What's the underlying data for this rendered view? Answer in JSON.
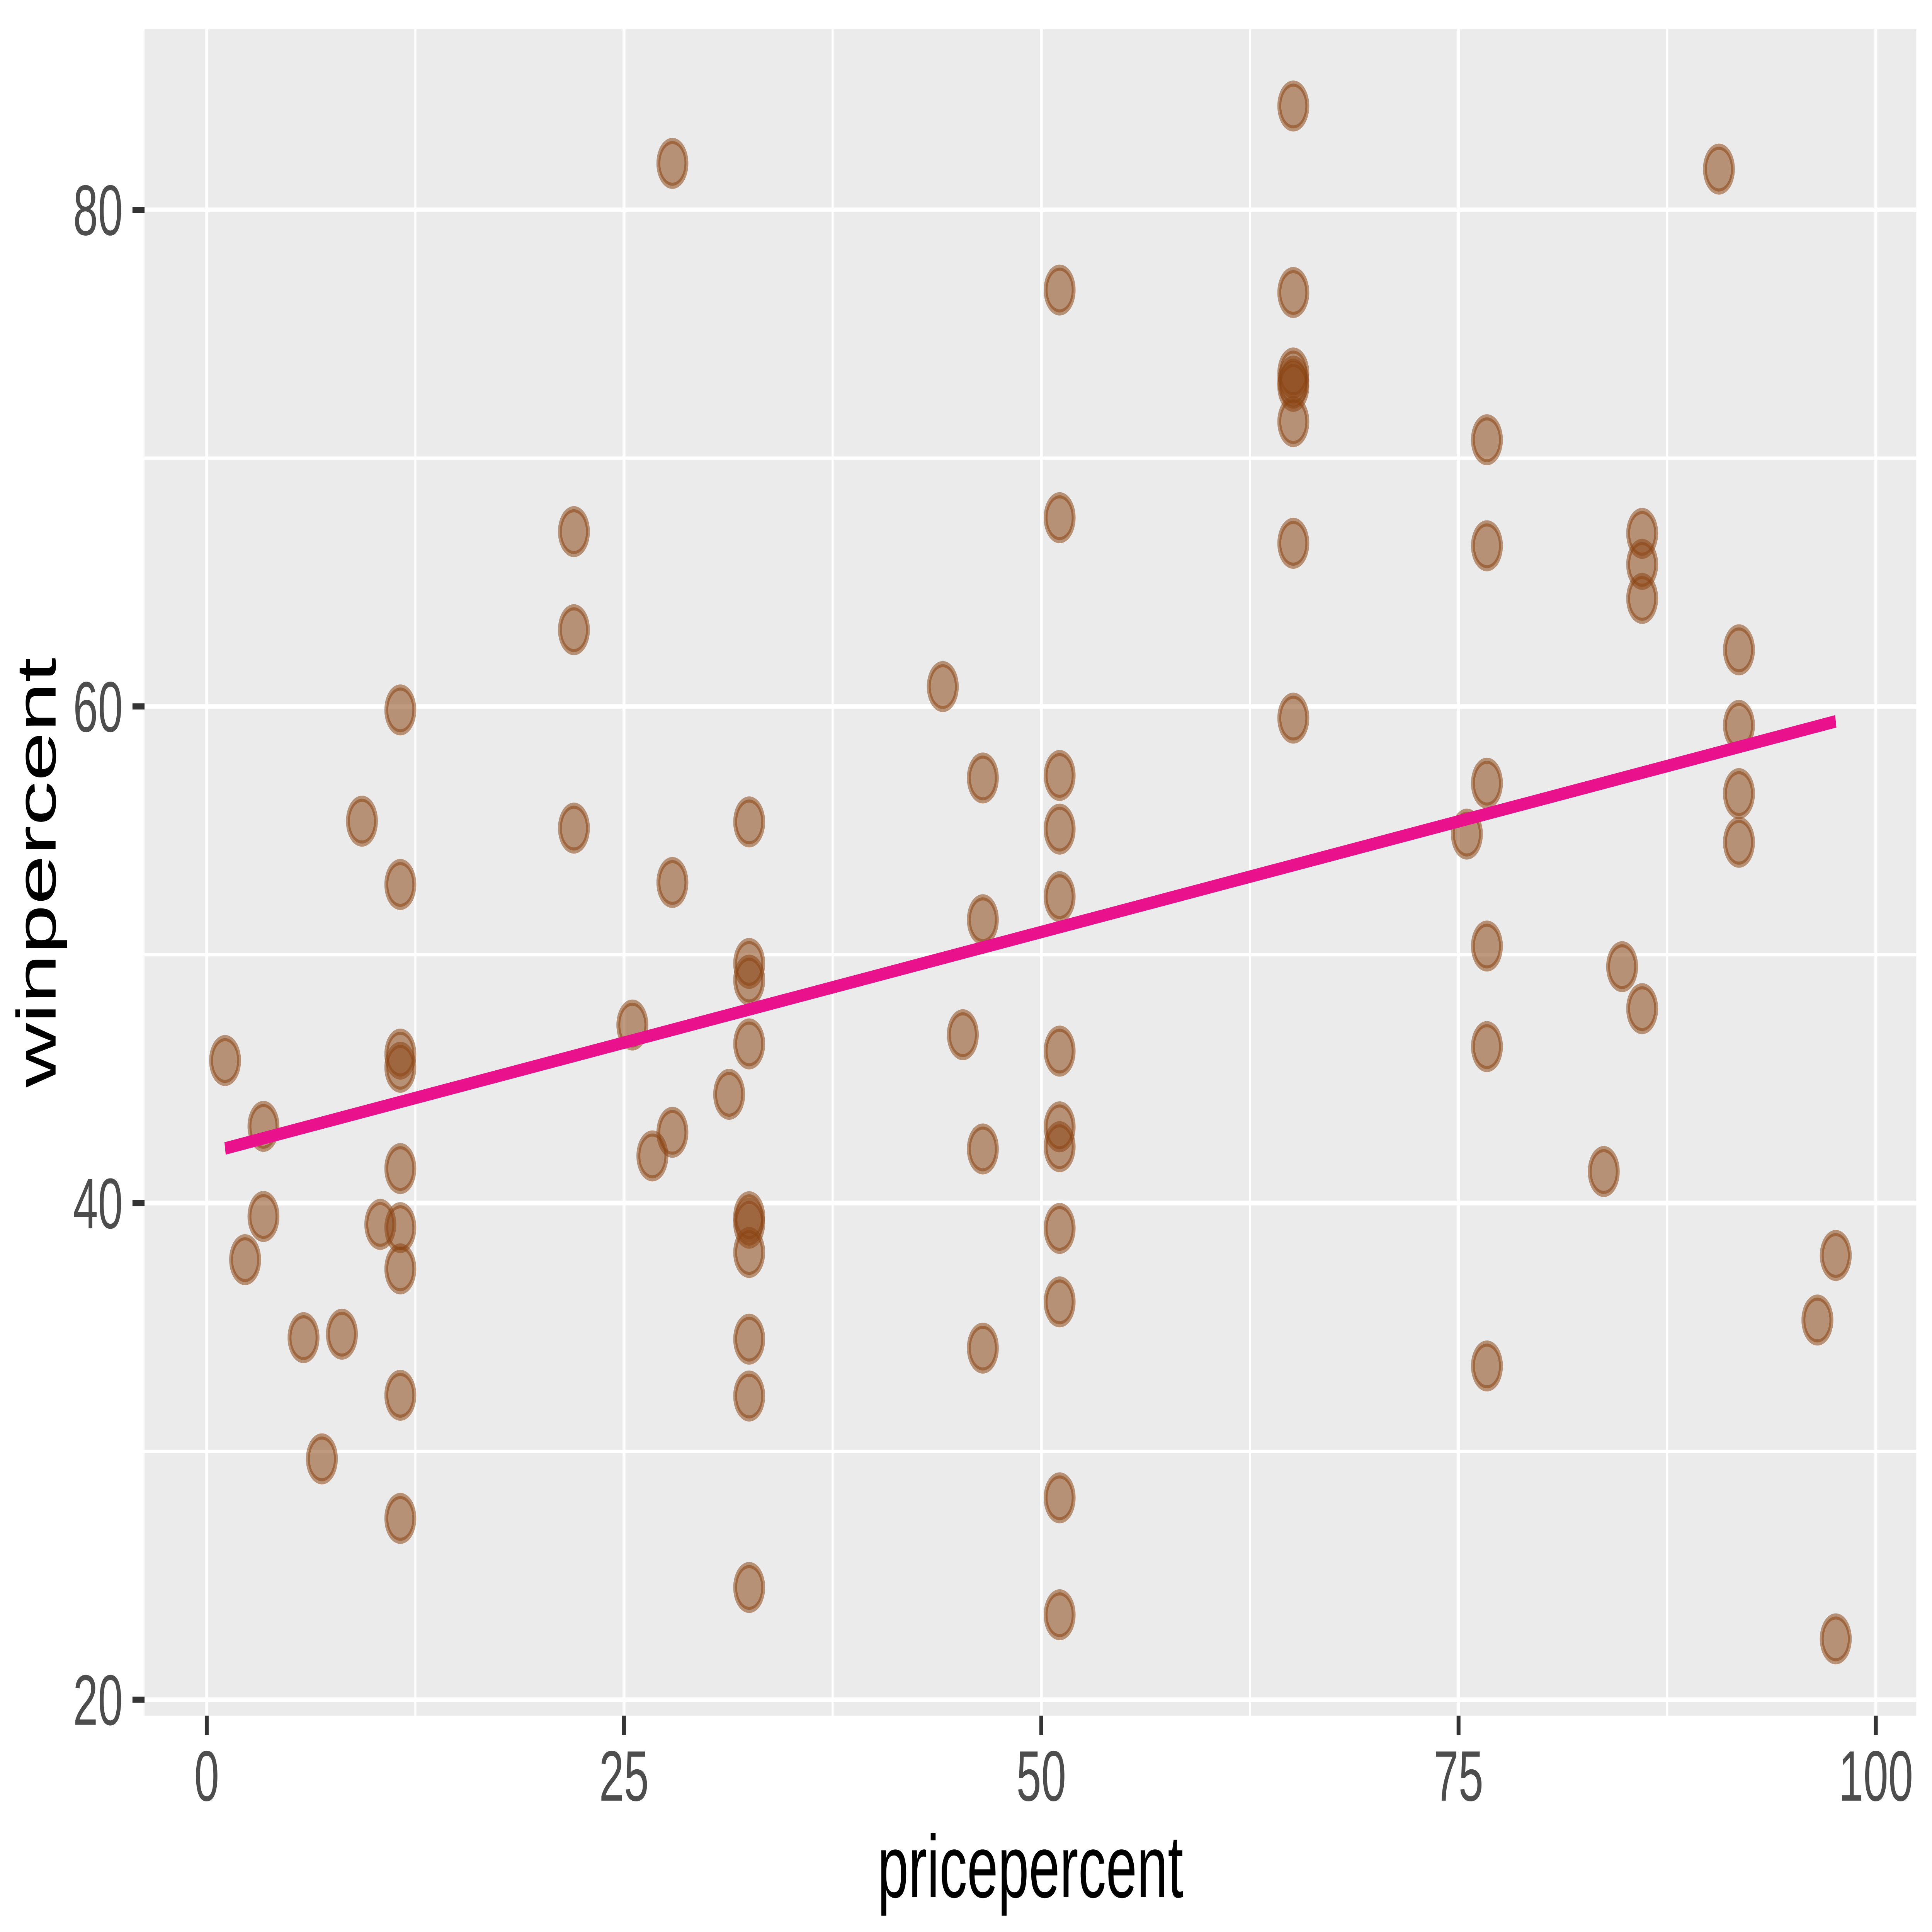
{
  "chart_data": {
    "type": "scatter",
    "title": "",
    "xlabel": "pricepercent",
    "ylabel": "winpercent",
    "x_ticks": [
      0,
      25,
      50,
      75,
      100
    ],
    "y_ticks": [
      20,
      40,
      60,
      80
    ],
    "x_minor": [
      12.5,
      37.5,
      62.5,
      87.5
    ],
    "y_minor": [
      30,
      50,
      70
    ],
    "x_domain": [
      -3.725,
      102.425
    ],
    "y_domain": [
      19.359,
      87.267
    ],
    "grid": true,
    "legend": "none",
    "points": [
      [
        86.0,
        66.97
      ],
      [
        51.1,
        67.6
      ],
      [
        11.6,
        32.26
      ],
      [
        51.1,
        46.12
      ],
      [
        51.1,
        52.34
      ],
      [
        76.7,
        50.35
      ],
      [
        76.7,
        56.91
      ],
      [
        51.1,
        23.42
      ],
      [
        32.5,
        38.01
      ],
      [
        32.5,
        34.52
      ],
      [
        51.1,
        38.98
      ],
      [
        51.1,
        36.02
      ],
      [
        32.5,
        24.52
      ],
      [
        51.1,
        42.27
      ],
      [
        3.4,
        39.46
      ],
      [
        3.4,
        43.09
      ],
      [
        32.5,
        39.19
      ],
      [
        45.3,
        46.78
      ],
      [
        46.5,
        57.12
      ],
      [
        46.5,
        34.16
      ],
      [
        46.5,
        51.41
      ],
      [
        46.5,
        42.18
      ],
      [
        9.3,
        55.38
      ],
      [
        91.8,
        62.28
      ],
      [
        91.8,
        56.49
      ],
      [
        91.8,
        59.24
      ],
      [
        51.1,
        28.13
      ],
      [
        51.1,
        57.22
      ],
      [
        51.1,
        76.77
      ],
      [
        11.6,
        41.39
      ],
      [
        10.4,
        39.14
      ],
      [
        27.9,
        52.91
      ],
      [
        65.1,
        71.47
      ],
      [
        65.1,
        66.57
      ],
      [
        32.5,
        46.41
      ],
      [
        51.1,
        55.06
      ],
      [
        65.1,
        73.1
      ],
      [
        44.1,
        60.8
      ],
      [
        86.0,
        64.35
      ],
      [
        86.0,
        47.83
      ],
      [
        91.8,
        54.53
      ],
      [
        32.5,
        55.35
      ],
      [
        76.7,
        70.74
      ],
      [
        76.7,
        66.47
      ],
      [
        97.6,
        22.45
      ],
      [
        32.5,
        39.45
      ],
      [
        76.7,
        46.3
      ],
      [
        2.3,
        37.72
      ],
      [
        83.7,
        41.27
      ],
      [
        11.6,
        37.35
      ],
      [
        27.9,
        81.87
      ],
      [
        65.1,
        84.18
      ],
      [
        65.1,
        73.43
      ],
      [
        65.1,
        72.89
      ],
      [
        96.5,
        35.29
      ],
      [
        86.0,
        65.72
      ],
      [
        6.9,
        29.7
      ],
      [
        27.9,
        42.85
      ],
      [
        8.1,
        34.72
      ],
      [
        22.0,
        63.09
      ],
      [
        22.0,
        55.1
      ],
      [
        97.6,
        37.89
      ],
      [
        11.6,
        46.0
      ],
      [
        65.1,
        76.67
      ],
      [
        65.1,
        59.53
      ],
      [
        11.6,
        59.86
      ],
      [
        11.6,
        52.83
      ],
      [
        22.0,
        67.04
      ],
      [
        5.8,
        34.58
      ],
      [
        76.7,
        33.44
      ],
      [
        32.5,
        32.23
      ],
      [
        11.6,
        27.3
      ],
      [
        75.5,
        54.86
      ],
      [
        32.5,
        48.98
      ],
      [
        51.1,
        43.07
      ],
      [
        1.1,
        45.74
      ],
      [
        32.5,
        49.65
      ],
      [
        25.5,
        47.17
      ],
      [
        90.6,
        81.64
      ],
      [
        11.6,
        45.47
      ],
      [
        11.6,
        39.01
      ],
      [
        31.3,
        44.38
      ],
      [
        26.7,
        41.9
      ],
      [
        84.8,
        49.52
      ]
    ],
    "trend": {
      "x1": 1.1,
      "y1": 42.2,
      "x2": 97.6,
      "y2": 59.4
    },
    "colors": {
      "background": "#FFFFFF",
      "panel": "#EBEBEB",
      "grid": "#FFFFFF",
      "point": "#8B4513",
      "point_alpha": 0.54,
      "trend": "#E9128C",
      "tick_mark": "#333333",
      "tick_label": "#4D4D4D",
      "axis_title": "#000000"
    }
  }
}
